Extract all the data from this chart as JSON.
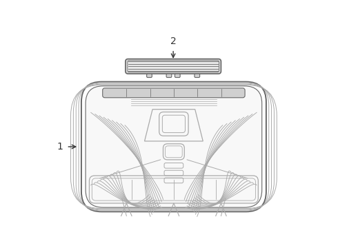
{
  "bg": "#ffffff",
  "lc": "#aaaaaa",
  "dc": "#666666",
  "blk": "#333333",
  "fig_w": 4.9,
  "fig_h": 3.6,
  "dpi": 100,
  "label1": "1",
  "label2": "2"
}
